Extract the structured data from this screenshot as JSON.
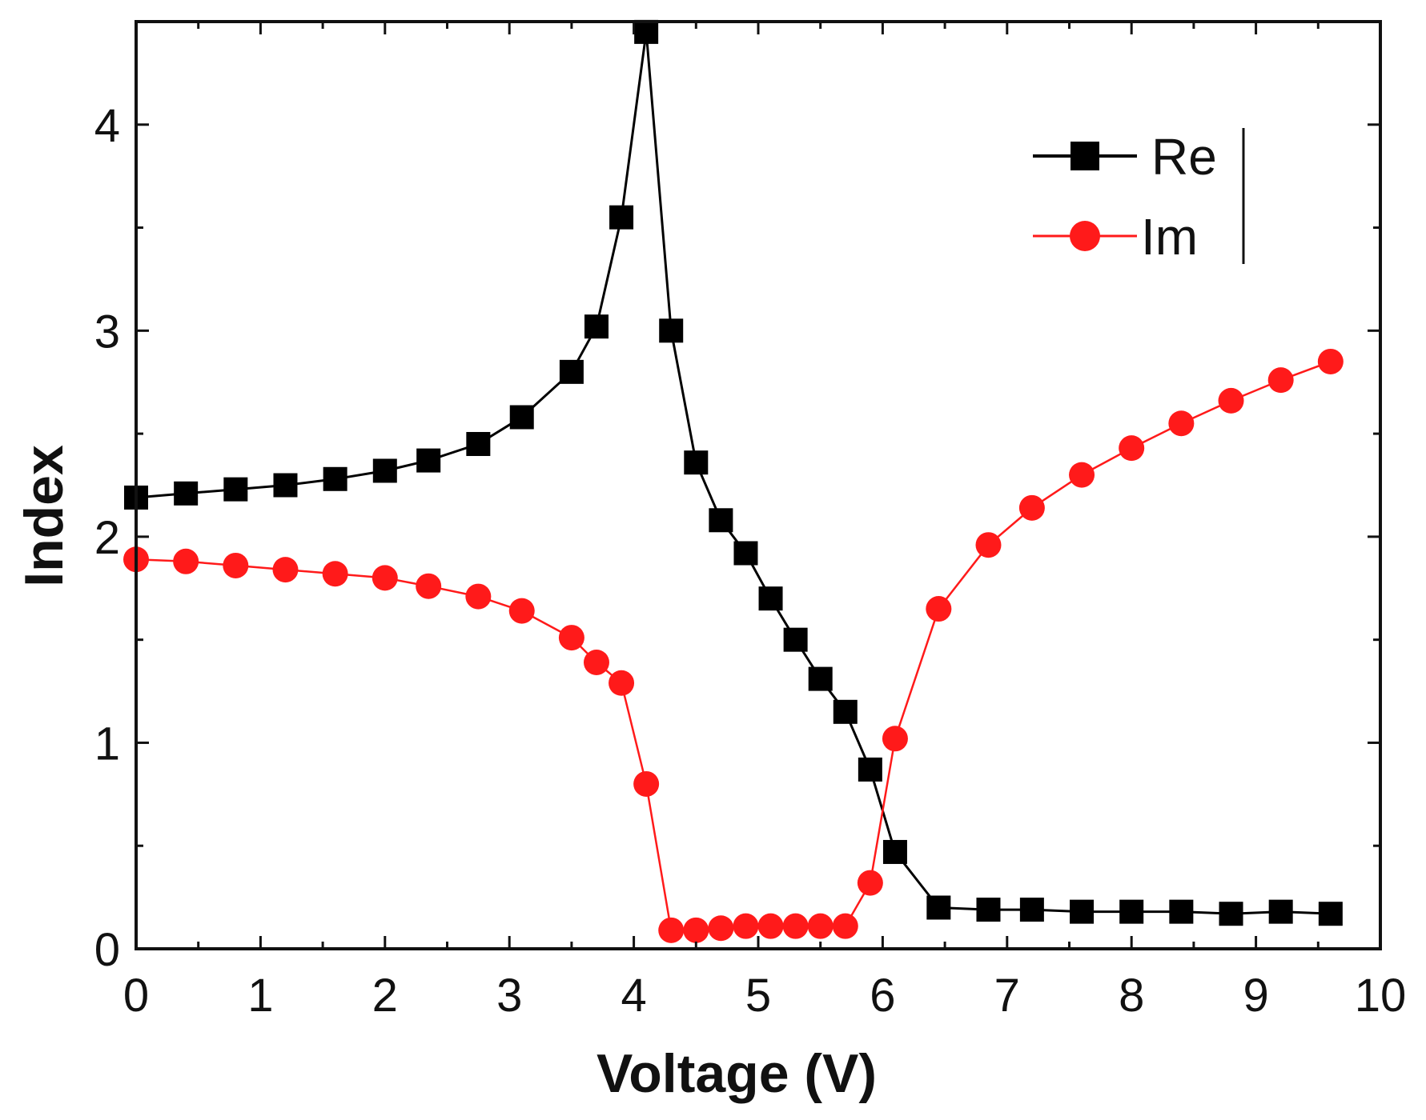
{
  "chart_data": {
    "type": "line",
    "title": "",
    "xlabel": "Voltage (V)",
    "ylabel": "Index",
    "xlim": [
      0,
      10
    ],
    "ylim": [
      0,
      4.5
    ],
    "xticks": [
      0,
      1,
      2,
      3,
      4,
      5,
      6,
      7,
      8,
      9,
      10
    ],
    "yticks": [
      0,
      1,
      2,
      3,
      4
    ],
    "xtick_labels": [
      "0",
      "1",
      "2",
      "3",
      "4",
      "5",
      "6",
      "7",
      "8",
      "9",
      "10"
    ],
    "ytick_labels": [
      "0",
      "1",
      "2",
      "3",
      "4"
    ],
    "grid": false,
    "legend_position": "top-right",
    "series": [
      {
        "name": "Re",
        "color": "#000000",
        "marker": "square",
        "x": [
          0,
          0.4,
          0.8,
          1.2,
          1.6,
          2.0,
          2.35,
          2.75,
          3.1,
          3.5,
          3.7,
          3.9,
          4.1,
          4.3,
          4.5,
          4.7,
          4.9,
          5.1,
          5.3,
          5.5,
          5.7,
          5.9,
          6.1,
          6.45,
          6.85,
          7.2,
          7.6,
          8.0,
          8.4,
          8.8,
          9.2,
          9.6
        ],
        "y": [
          2.19,
          2.21,
          2.23,
          2.25,
          2.28,
          2.32,
          2.37,
          2.45,
          2.58,
          2.8,
          3.02,
          3.55,
          4.45,
          3.0,
          2.36,
          2.08,
          1.92,
          1.7,
          1.5,
          1.31,
          1.15,
          0.87,
          0.47,
          0.2,
          0.19,
          0.19,
          0.18,
          0.18,
          0.18,
          0.17,
          0.18,
          0.17
        ]
      },
      {
        "name": "Im",
        "color": "#ff1a1a",
        "marker": "circle",
        "x": [
          0,
          0.4,
          0.8,
          1.2,
          1.6,
          2.0,
          2.35,
          2.75,
          3.1,
          3.5,
          3.7,
          3.9,
          4.1,
          4.3,
          4.5,
          4.7,
          4.9,
          5.1,
          5.3,
          5.5,
          5.7,
          5.9,
          6.1,
          6.45,
          6.85,
          7.2,
          7.6,
          8.0,
          8.4,
          8.8,
          9.2,
          9.6
        ],
        "y": [
          1.89,
          1.88,
          1.86,
          1.84,
          1.82,
          1.8,
          1.76,
          1.71,
          1.64,
          1.51,
          1.39,
          1.29,
          0.8,
          0.09,
          0.09,
          0.1,
          0.11,
          0.11,
          0.11,
          0.11,
          0.11,
          0.32,
          1.02,
          1.65,
          1.96,
          2.14,
          2.3,
          2.43,
          2.55,
          2.66,
          2.76,
          2.85
        ]
      }
    ]
  }
}
